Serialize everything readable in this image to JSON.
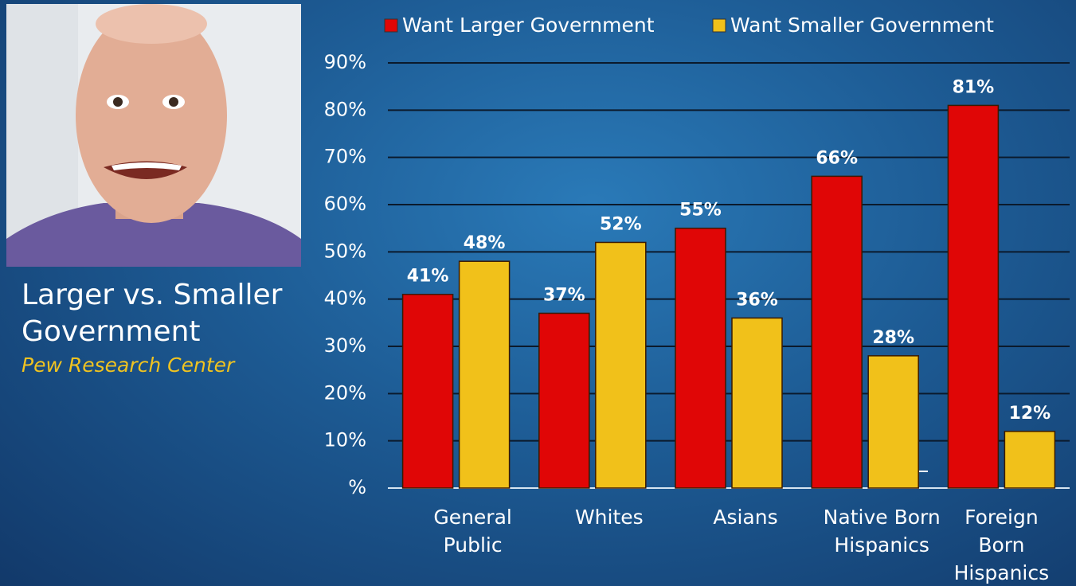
{
  "chart_data": {
    "type": "bar",
    "title": "Larger vs. Smaller Government",
    "subtitle": "Pew Research Center",
    "categories": [
      "General Public",
      "Whites",
      "Asians",
      "Native Born Hispanics",
      "Foreign Born Hispanics"
    ],
    "series": [
      {
        "name": "Want Larger Government",
        "color": "#e00606",
        "values": [
          41,
          37,
          55,
          66,
          81
        ],
        "value_labels": [
          "41%",
          "37%",
          "55%",
          "66%",
          "81%"
        ]
      },
      {
        "name": "Want Smaller Government",
        "color": "#f1c11a",
        "values": [
          48,
          52,
          36,
          28,
          12
        ],
        "value_labels": [
          "48%",
          "52%",
          "36%",
          "28%",
          "12%"
        ]
      }
    ],
    "ylim": [
      0,
      90
    ],
    "yticks": [
      {
        "value": 0,
        "label": "%"
      },
      {
        "value": 10,
        "label": "10%"
      },
      {
        "value": 20,
        "label": "20%"
      },
      {
        "value": 30,
        "label": "30%"
      },
      {
        "value": 40,
        "label": "40%"
      },
      {
        "value": 50,
        "label": "50%"
      },
      {
        "value": 60,
        "label": "60%"
      },
      {
        "value": 70,
        "label": "70%"
      },
      {
        "value": 80,
        "label": "80%"
      },
      {
        "value": 90,
        "label": "90%"
      }
    ],
    "grid": true,
    "legend": "top"
  }
}
